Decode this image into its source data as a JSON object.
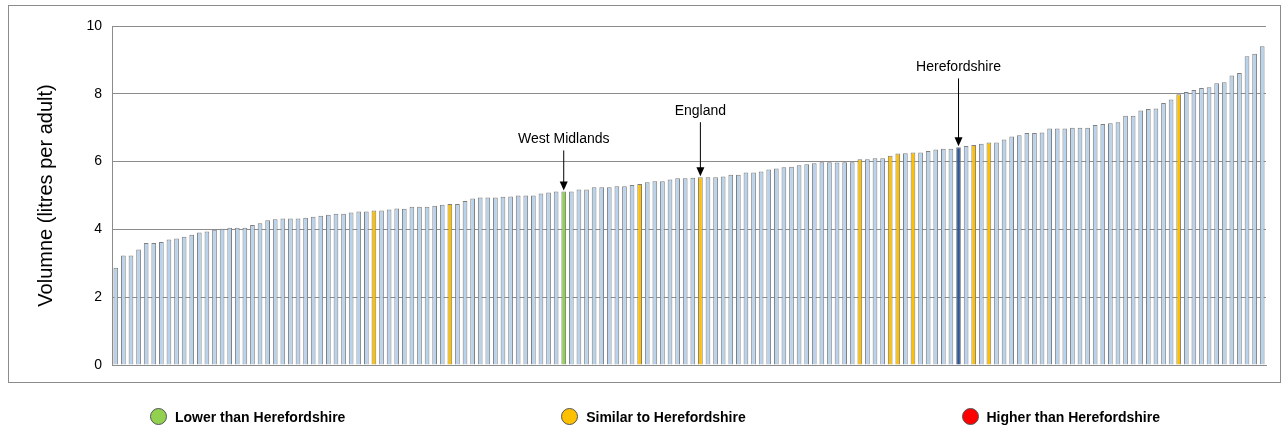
{
  "chart_data": {
    "type": "bar",
    "ylabel": "Volumne (litres per adult)",
    "categories": [
      null,
      null,
      null,
      null,
      null,
      null,
      null,
      null,
      null,
      null,
      null,
      null,
      null,
      null,
      null,
      null,
      null,
      null,
      null,
      null,
      null,
      null,
      null,
      null,
      null,
      null,
      null,
      null,
      null,
      null,
      null,
      null,
      null,
      null,
      null,
      null,
      null,
      null,
      null,
      null,
      null,
      null,
      null,
      null,
      null,
      null,
      null,
      null,
      null,
      null,
      null,
      null,
      null,
      null,
      null,
      null,
      null,
      null,
      null,
      null,
      null,
      null,
      null,
      null,
      null,
      null,
      null,
      null,
      null,
      null,
      null,
      null,
      null,
      null,
      null,
      null,
      null,
      null,
      null,
      null,
      null,
      null,
      null,
      null,
      null,
      null,
      null,
      null,
      null,
      null,
      null,
      null,
      null,
      null,
      null,
      null,
      null,
      null,
      null,
      null,
      null,
      null,
      null,
      null,
      null,
      null,
      null,
      null,
      null,
      null,
      null,
      null,
      null,
      null,
      null,
      null,
      null,
      null,
      null,
      null,
      null,
      null,
      null,
      null,
      null,
      null,
      null,
      null,
      null,
      null,
      null,
      null,
      null,
      null,
      null,
      null,
      null,
      null,
      null,
      null,
      null,
      null,
      null,
      null,
      null,
      null,
      null,
      null,
      null,
      null,
      null,
      null
    ],
    "series": [
      {
        "color": "#b9d3ec",
        "values": [
          2.87,
          3.23,
          3.23,
          3.41,
          3.6,
          3.6,
          3.63,
          3.7,
          3.73,
          3.78,
          3.84,
          3.91,
          3.94,
          3.99,
          4.02,
          4.05,
          4.05,
          4.05,
          4.13,
          4.18,
          4.27,
          4.3,
          4.32,
          4.32,
          4.32,
          4.34,
          4.37,
          4.4,
          4.43,
          4.46,
          4.46,
          4.5,
          4.53,
          4.53,
          null,
          4.56,
          4.59,
          4.62,
          4.61,
          4.67,
          4.67,
          4.67,
          4.7,
          4.73,
          null,
          4.75,
          4.84,
          4.91,
          4.94,
          4.94,
          4.94,
          4.96,
          4.97,
          5.0,
          5.0,
          5.0,
          5.06,
          5.09,
          5.12,
          null,
          5.12,
          5.18,
          5.18,
          5.24,
          5.24,
          5.24,
          5.27,
          5.27,
          5.31,
          null,
          5.39,
          5.42,
          5.42,
          5.47,
          5.51,
          5.51,
          5.52,
          null,
          5.54,
          5.54,
          5.56,
          5.61,
          5.61,
          5.68,
          5.68,
          5.71,
          5.77,
          5.8,
          5.83,
          5.85,
          5.89,
          5.92,
          5.95,
          5.98,
          5.98,
          5.97,
          5.98,
          5.98,
          null,
          6.07,
          6.1,
          6.1,
          null,
          null,
          6.25,
          null,
          6.27,
          6.31,
          6.36,
          6.38,
          6.38,
          null,
          6.46,
          null,
          6.53,
          null,
          6.56,
          6.65,
          6.74,
          6.78,
          6.84,
          6.84,
          6.86,
          6.98,
          6.98,
          6.98,
          7.0,
          7.0,
          7.0,
          7.08,
          7.11,
          7.13,
          7.16,
          7.35,
          7.35,
          7.51,
          7.55,
          7.57,
          7.73,
          7.83,
          null,
          8.05,
          8.11,
          8.17,
          8.19,
          8.31,
          8.34,
          8.54,
          8.61,
          9.11,
          9.18,
          9.4
        ]
      },
      {
        "color": "#2f5597",
        "values": [
          null,
          null,
          null,
          null,
          null,
          null,
          null,
          null,
          null,
          null,
          null,
          null,
          null,
          null,
          null,
          null,
          null,
          null,
          null,
          null,
          null,
          null,
          null,
          null,
          null,
          null,
          null,
          null,
          null,
          null,
          null,
          null,
          null,
          null,
          null,
          null,
          null,
          null,
          null,
          null,
          null,
          null,
          null,
          null,
          null,
          null,
          null,
          null,
          null,
          null,
          null,
          null,
          null,
          null,
          null,
          null,
          null,
          null,
          null,
          null,
          null,
          null,
          null,
          null,
          null,
          null,
          null,
          null,
          null,
          null,
          null,
          null,
          null,
          null,
          null,
          null,
          null,
          null,
          null,
          null,
          null,
          null,
          null,
          null,
          null,
          null,
          null,
          null,
          null,
          null,
          null,
          null,
          null,
          null,
          null,
          null,
          null,
          null,
          null,
          null,
          null,
          null,
          null,
          null,
          null,
          null,
          null,
          null,
          null,
          null,
          null,
          6.42,
          null,
          null,
          null,
          null,
          null,
          null,
          null,
          null,
          null,
          null,
          null,
          null,
          null,
          null,
          null,
          null,
          null,
          null,
          null,
          null,
          null,
          null,
          null,
          null,
          null,
          null,
          null,
          null,
          null,
          null,
          null,
          null,
          null,
          null,
          null,
          null,
          null,
          null,
          null,
          null
        ]
      },
      {
        "name": "Lower than Herefordshire",
        "color": "#92d050",
        "values": [
          null,
          null,
          null,
          null,
          null,
          null,
          null,
          null,
          null,
          null,
          null,
          null,
          null,
          null,
          null,
          null,
          null,
          null,
          null,
          null,
          null,
          null,
          null,
          null,
          null,
          null,
          null,
          null,
          null,
          null,
          null,
          null,
          null,
          null,
          null,
          null,
          null,
          null,
          null,
          null,
          null,
          null,
          null,
          null,
          null,
          null,
          null,
          null,
          null,
          null,
          null,
          null,
          null,
          null,
          null,
          null,
          null,
          null,
          null,
          5.12,
          null,
          null,
          null,
          null,
          null,
          null,
          null,
          null,
          null,
          null,
          null,
          null,
          null,
          null,
          null,
          null,
          null,
          null,
          null,
          null,
          null,
          null,
          null,
          null,
          null,
          null,
          null,
          null,
          null,
          null,
          null,
          null,
          null,
          null,
          null,
          null,
          null,
          null,
          null,
          null,
          null,
          null,
          null,
          null,
          null,
          null,
          null,
          null,
          null,
          null,
          null,
          null,
          null,
          null,
          null,
          null,
          null,
          null,
          null,
          null,
          null,
          null,
          null,
          null,
          null,
          null,
          null,
          null,
          null,
          null,
          null,
          null,
          null,
          null,
          null,
          null,
          null,
          null,
          null,
          null,
          null,
          null,
          null,
          null,
          null,
          null,
          null,
          null,
          null,
          null,
          null,
          null
        ]
      },
      {
        "name": "Similar to Herefordshire",
        "color": "#ffc000",
        "values": [
          null,
          null,
          null,
          null,
          null,
          null,
          null,
          null,
          null,
          null,
          null,
          null,
          null,
          null,
          null,
          null,
          null,
          null,
          null,
          null,
          null,
          null,
          null,
          null,
          null,
          null,
          null,
          null,
          null,
          null,
          null,
          null,
          null,
          null,
          4.56,
          null,
          null,
          null,
          null,
          null,
          null,
          null,
          null,
          null,
          4.75,
          null,
          null,
          null,
          null,
          null,
          null,
          null,
          null,
          null,
          null,
          null,
          null,
          null,
          null,
          null,
          null,
          null,
          null,
          null,
          null,
          null,
          null,
          null,
          null,
          5.34,
          null,
          null,
          null,
          null,
          null,
          null,
          null,
          5.54,
          null,
          null,
          null,
          null,
          null,
          null,
          null,
          null,
          null,
          null,
          null,
          null,
          null,
          null,
          null,
          null,
          null,
          null,
          null,
          null,
          6.07,
          null,
          null,
          null,
          6.17,
          6.24,
          null,
          6.27,
          null,
          null,
          null,
          null,
          null,
          null,
          null,
          6.49,
          null,
          6.56,
          null,
          null,
          null,
          null,
          null,
          null,
          null,
          null,
          null,
          null,
          null,
          null,
          null,
          null,
          null,
          null,
          null,
          null,
          null,
          null,
          null,
          null,
          null,
          null,
          7.99,
          null,
          null,
          null,
          null,
          null,
          null,
          null,
          null,
          null,
          null,
          null
        ]
      },
      {
        "name": "Higher than Herefordshire",
        "color": "#ff0000",
        "values": [
          null,
          null,
          null,
          null,
          null,
          null,
          null,
          null,
          null,
          null,
          null,
          null,
          null,
          null,
          null,
          null,
          null,
          null,
          null,
          null,
          null,
          null,
          null,
          null,
          null,
          null,
          null,
          null,
          null,
          null,
          null,
          null,
          null,
          null,
          null,
          null,
          null,
          null,
          null,
          null,
          null,
          null,
          null,
          null,
          null,
          null,
          null,
          null,
          null,
          null,
          null,
          null,
          null,
          null,
          null,
          null,
          null,
          null,
          null,
          null,
          null,
          null,
          null,
          null,
          null,
          null,
          null,
          null,
          null,
          null,
          null,
          null,
          null,
          null,
          null,
          null,
          null,
          null,
          null,
          null,
          null,
          null,
          null,
          null,
          null,
          null,
          null,
          null,
          null,
          null,
          null,
          null,
          null,
          null,
          null,
          null,
          null,
          null,
          null,
          null,
          null,
          null,
          null,
          null,
          null,
          null,
          null,
          null,
          null,
          null,
          null,
          null,
          null,
          null,
          null,
          null,
          null,
          null,
          null,
          null,
          null,
          null,
          null,
          null,
          null,
          null,
          null,
          null,
          null,
          null,
          null,
          null,
          null,
          null,
          null,
          null,
          null,
          null,
          null,
          null,
          null,
          null,
          null,
          null,
          null,
          null,
          null,
          null,
          null,
          null,
          null,
          null
        ]
      }
    ],
    "ylim": [
      0,
      10
    ],
    "yticks": [
      0,
      2,
      4,
      6,
      8,
      10
    ],
    "grid": "y",
    "legend": "bottom",
    "tick_labels": "y",
    "annotations": [
      {
        "text": "West Midlands",
        "y": 5.12
      },
      {
        "text": "England",
        "y": 5.54
      },
      {
        "text": "Herefordshire",
        "y": 6.42
      }
    ]
  }
}
